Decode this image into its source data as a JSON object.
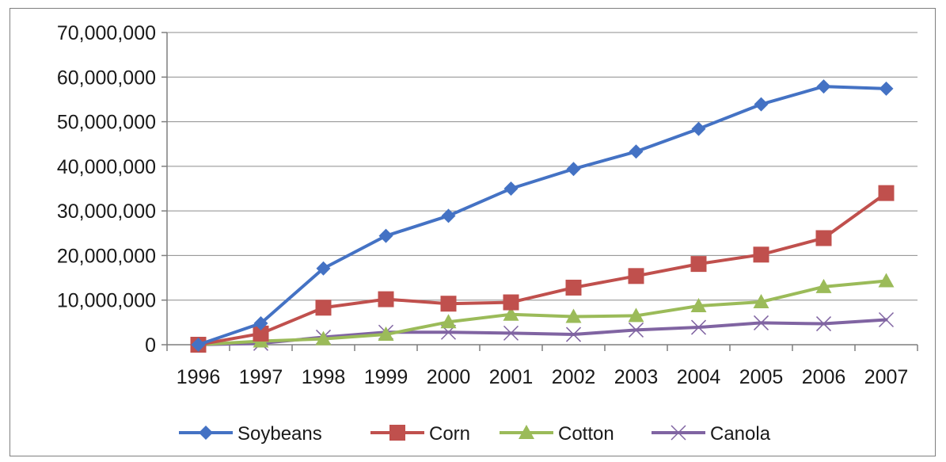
{
  "chart_data": {
    "type": "line",
    "categories": [
      "1996",
      "1997",
      "1998",
      "1999",
      "2000",
      "2001",
      "2002",
      "2003",
      "2004",
      "2005",
      "2006",
      "2007"
    ],
    "y_ticks": [
      "0",
      "10,000,000",
      "20,000,000",
      "30,000,000",
      "40,000,000",
      "50,000,000",
      "60,000,000",
      "70,000,000"
    ],
    "ylim": [
      0,
      70000000
    ],
    "grid": true,
    "legend_position": "bottom",
    "series": [
      {
        "name": "Soybeans",
        "color": "#4472c4",
        "marker": "diamond",
        "values": [
          0,
          4800000,
          17100000,
          24400000,
          28900000,
          35000000,
          39400000,
          43300000,
          48400000,
          53900000,
          57900000,
          57400000
        ]
      },
      {
        "name": "Corn",
        "color": "#c0504d",
        "marker": "square",
        "values": [
          0,
          2500000,
          8300000,
          10200000,
          9200000,
          9500000,
          12800000,
          15400000,
          18100000,
          20200000,
          23900000,
          34000000
        ]
      },
      {
        "name": "Cotton",
        "color": "#9bbb59",
        "marker": "triangle",
        "values": [
          0,
          800000,
          1300000,
          2300000,
          5100000,
          6800000,
          6300000,
          6500000,
          8700000,
          9600000,
          13000000,
          14300000
        ]
      },
      {
        "name": "Canola",
        "color": "#8064a2",
        "marker": "x",
        "values": [
          0,
          300000,
          1700000,
          2800000,
          2800000,
          2600000,
          2300000,
          3300000,
          3900000,
          4900000,
          4700000,
          5600000
        ]
      }
    ]
  }
}
